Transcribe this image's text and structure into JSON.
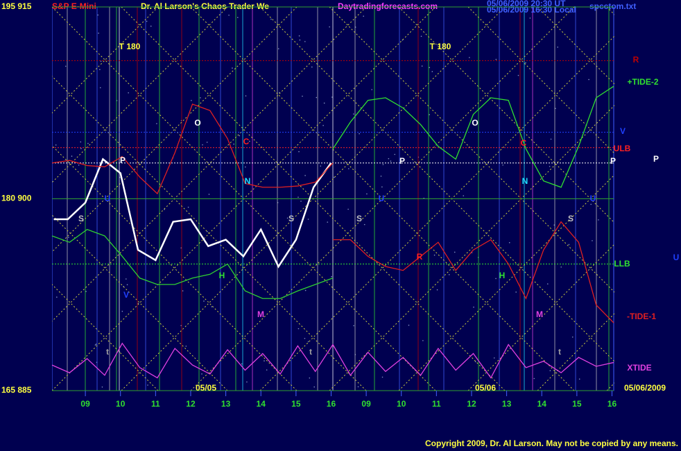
{
  "chart_data": {
    "type": "line",
    "header": {
      "symbol": "S&P E-Mini",
      "title": "Dr. Al Larson's Chaos Trader We",
      "site": "Daytradingforecasts.com",
      "stamp_ut": "05/06/2009 20:30 UT",
      "stamp_local": "05/06/2009 16:30 Local",
      "file": "spcctom.txt"
    },
    "copyright": "Copyright 2009, Dr. Al Larson. May not be copied by any means.",
    "xlim": [
      8.05,
      24.05
    ],
    "xticks": [
      {
        "value": 9,
        "label": "09"
      },
      10,
      11,
      12,
      13,
      14,
      15,
      16,
      {
        "value": 17,
        "label": "09"
      },
      {
        "value": 18,
        "label": "10"
      },
      {
        "value": 19,
        "label": "11"
      },
      {
        "value": 20,
        "label": "12"
      },
      {
        "value": 21,
        "label": "13"
      },
      {
        "value": 22,
        "label": "14"
      },
      {
        "value": 23,
        "label": "15"
      },
      {
        "value": 24,
        "label": "16"
      }
    ],
    "ylim": [
      885,
      915
    ],
    "yticks": [
      {
        "value": 915,
        "label": "195  915"
      },
      {
        "value": 900,
        "label": "180  900"
      },
      {
        "value": 885,
        "label": "165  885"
      }
    ],
    "series": [
      {
        "color": "#ffffff",
        "x": [
          8.1,
          8.5,
          9.0,
          9.5,
          10.0,
          10.5,
          11.0,
          11.5,
          12.0,
          12.5,
          13.0,
          13.5,
          14.0,
          14.5,
          15.0,
          15.5,
          16.0
        ],
        "values": [
          898.4,
          898.4,
          899.7,
          903.1,
          902.0,
          896.0,
          895.2,
          898.2,
          898.4,
          896.3,
          896.8,
          895.5,
          897.6,
          894.7,
          896.8,
          900.9,
          902.8
        ]
      },
      {
        "color": "#e02020",
        "x": [
          8.05,
          8.55,
          9.05,
          9.55,
          10.05,
          10.55,
          11.05,
          11.55,
          12.05,
          12.55,
          13.05,
          13.55,
          14.05,
          14.55,
          15.05,
          15.55,
          16.05
        ],
        "values": [
          902.8,
          903.0,
          902.6,
          902.5,
          903.3,
          901.7,
          900.4,
          903.6,
          907.4,
          906.9,
          904.7,
          901.2,
          900.9,
          900.9,
          901.0,
          901.3,
          902.8
        ]
      },
      {
        "color": "#30d030",
        "x": [
          8.05,
          8.55,
          9.05,
          9.55,
          10.05,
          10.55,
          11.05,
          11.55,
          12.05,
          12.55,
          13.05,
          13.55,
          14.05,
          14.55,
          15.05,
          15.55,
          16.05
        ],
        "values": [
          897.1,
          896.6,
          897.6,
          897.1,
          895.5,
          893.8,
          893.3,
          893.3,
          893.8,
          894.1,
          894.9,
          892.8,
          892.2,
          892.2,
          892.8,
          893.3,
          893.8
        ]
      },
      {
        "name": "+TIDE-2",
        "color": "#30e030",
        "x": [
          16.05,
          16.55,
          17.05,
          17.55,
          18.05,
          18.55,
          19.05,
          19.55,
          20.05,
          20.55,
          21.05,
          21.55,
          22.05,
          22.55,
          23.05,
          23.55,
          24.05
        ],
        "values": [
          903.9,
          906.0,
          907.7,
          907.9,
          907.1,
          905.8,
          904.1,
          903.1,
          906.6,
          907.9,
          907.7,
          903.9,
          901.4,
          900.9,
          904.1,
          907.9,
          908.8
        ]
      },
      {
        "name": "-TIDE-1",
        "color": "#e02020",
        "x": [
          16.05,
          16.55,
          17.05,
          17.55,
          18.05,
          18.55,
          19.05,
          19.55,
          20.05,
          20.55,
          21.05,
          21.55,
          22.05,
          22.55,
          23.05,
          23.55,
          24.05
        ],
        "values": [
          896.8,
          896.8,
          895.5,
          894.7,
          894.4,
          895.5,
          896.6,
          894.4,
          896.0,
          896.8,
          894.9,
          892.2,
          896.0,
          898.2,
          896.6,
          891.7,
          890.3
        ]
      },
      {
        "name": "XTIDE",
        "color": "#e040e0",
        "x": [
          8.05,
          8.55,
          9.05,
          9.55,
          10.05,
          10.55,
          11.05,
          11.55,
          12.05,
          12.55,
          13.05,
          13.55,
          14.05,
          14.55,
          15.05,
          15.55,
          16.05,
          16.55,
          17.05,
          17.55,
          18.05,
          18.55,
          19.05,
          19.55,
          20.05,
          20.55,
          21.05,
          21.55,
          22.05,
          22.55,
          23.05,
          23.55,
          24.05
        ],
        "values": [
          887.0,
          886.4,
          887.5,
          886.2,
          888.7,
          886.8,
          886.0,
          888.3,
          887.0,
          886.3,
          888.2,
          886.6,
          887.9,
          886.3,
          888.5,
          886.5,
          888.6,
          886.2,
          888.0,
          886.5,
          887.6,
          886.2,
          888.3,
          886.6,
          887.9,
          886.0,
          888.6,
          886.8,
          887.3,
          886.4,
          887.6,
          886.9,
          887.2
        ]
      }
    ],
    "levels": [
      {
        "label": "R",
        "value": 910.8,
        "color": "#c00000"
      },
      {
        "label": "V",
        "value": 905.2,
        "color": "#2040ff"
      },
      {
        "label": "ULB",
        "value": 904.0,
        "color": "#ff2020"
      },
      {
        "label": "P",
        "value": 902.8,
        "color": "#ffffff"
      },
      {
        "label": "LLB",
        "value": 894.9,
        "color": "#30e030"
      }
    ],
    "annotations": [
      {
        "text": "T 180",
        "color": "#ffff40"
      },
      {
        "text": "T 180",
        "color": "#ffff40"
      },
      {
        "text": "O",
        "color": "#ffffff"
      },
      {
        "text": "O",
        "color": "#ffffff"
      },
      {
        "text": "C",
        "color": "#ff2020"
      },
      {
        "text": "C",
        "color": "#ff2020"
      },
      {
        "text": "N",
        "color": "#20e0ff"
      },
      {
        "text": "N",
        "color": "#20e0ff"
      },
      {
        "text": "U",
        "color": "#2040ff"
      },
      {
        "text": "U",
        "color": "#2040ff"
      },
      {
        "text": "U",
        "color": "#2040ff"
      },
      {
        "text": "U",
        "color": "#2040ff"
      },
      {
        "text": "S",
        "color": "#c0c0c0"
      },
      {
        "text": "S",
        "color": "#c0c0c0"
      },
      {
        "text": "S",
        "color": "#c0c0c0"
      },
      {
        "text": "S",
        "color": "#c0c0c0"
      },
      {
        "text": "P",
        "color": "#ffffff"
      },
      {
        "text": "P",
        "color": "#ffffff"
      },
      {
        "text": "P",
        "color": "#ffffff"
      },
      {
        "text": "H",
        "color": "#30e030"
      },
      {
        "text": "H",
        "color": "#30e030"
      },
      {
        "text": "M",
        "color": "#e040e0"
      },
      {
        "text": "M",
        "color": "#e040e0"
      },
      {
        "text": "V",
        "color": "#2040ff"
      },
      {
        "text": "R",
        "color": "#ff2020"
      },
      {
        "text": "t",
        "color": "#a0a0a0"
      },
      {
        "text": "t",
        "color": "#a0a0a0"
      },
      {
        "text": "t",
        "color": "#a0a0a0"
      },
      {
        "text": "05/05",
        "color": "#ffff40"
      },
      {
        "text": "05/06",
        "color": "#ffff40"
      },
      {
        "text": "05/06/2009",
        "color": "#ffff40"
      }
    ]
  }
}
